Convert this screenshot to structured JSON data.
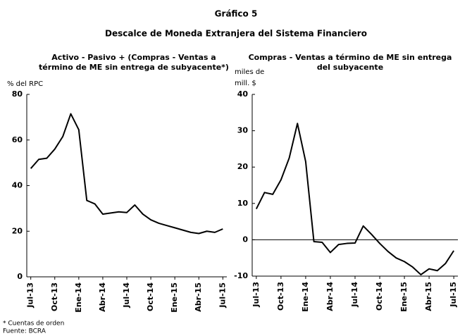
{
  "title": "Gráfico 5",
  "subtitle": "Descalce de Moneda Extranjera del Sistema Financiero",
  "notes": [
    "* Cuentas de orden",
    "Fuente: BCRA"
  ],
  "chart_data": [
    {
      "type": "line",
      "title": [
        "Activo - Pasivo + (Compras - Ventas a",
        "término de ME sin entrega de subyacente*)"
      ],
      "y_label": [
        "% del RPC"
      ],
      "categories": [
        "Jul-13",
        null,
        null,
        "Oct-13",
        null,
        null,
        "Ene-14",
        null,
        null,
        "Abr-14",
        null,
        null,
        "Jul-14",
        null,
        null,
        "Oct-14",
        null,
        null,
        "Ene-15",
        null,
        null,
        "Abr-15",
        null,
        null,
        "Jul-15"
      ],
      "values": [
        47.5,
        51.5,
        52,
        56,
        61.5,
        71.5,
        64.5,
        33.5,
        32,
        27.5,
        28,
        28.5,
        28.2,
        31.5,
        27.5,
        25,
        23.5,
        22.5,
        21.5,
        20.5,
        19.5,
        19,
        20,
        19.5,
        21
      ],
      "color": "#000000",
      "ylim": [
        0,
        80
      ],
      "yticks": [
        0,
        20,
        40,
        60,
        80
      ]
    },
    {
      "type": "line",
      "title": [
        "Compras - Ventas a término de ME sin entrega",
        "del subyacente"
      ],
      "y_label": [
        "miles de",
        "mill. $"
      ],
      "categories": [
        "Jul-13",
        null,
        null,
        "Oct-13",
        null,
        null,
        "Ene-14",
        null,
        null,
        "Abr-14",
        null,
        null,
        "Jul-14",
        null,
        null,
        "Oct-14",
        null,
        null,
        "Ene-15",
        null,
        null,
        "Abr-15",
        null,
        null,
        "Jul-15"
      ],
      "values": [
        8.5,
        13,
        12.5,
        16.5,
        22.5,
        32,
        21.5,
        -0.5,
        -0.7,
        -3.5,
        -1.3,
        -1,
        -0.9,
        3.8,
        1.5,
        -1,
        -3.2,
        -5,
        -6,
        -7.5,
        -9.6,
        -8,
        -8.5,
        -6.5,
        -3
      ],
      "color": "#000000",
      "ylim": [
        -10,
        40
      ],
      "yticks": [
        -10,
        0,
        10,
        20,
        30,
        40
      ]
    }
  ]
}
